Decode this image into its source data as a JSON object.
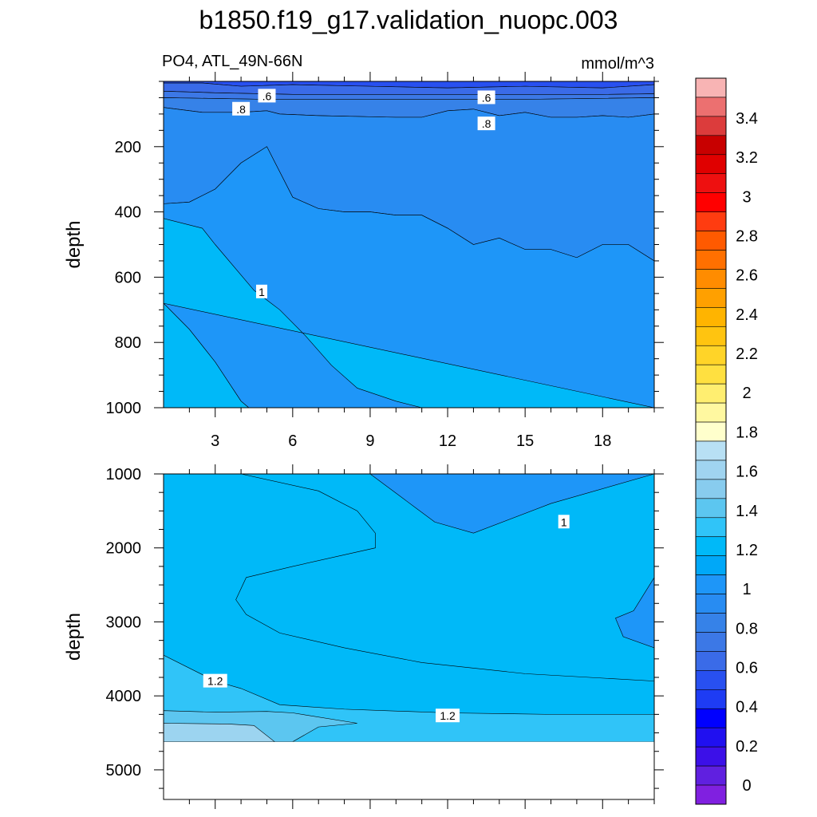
{
  "figure": {
    "title": "b1850.f19_g17.validation_nuopc.003",
    "left_string": "PO4, ATL_49N-66N",
    "right_string": "mmol/m^3"
  },
  "chart_data": [
    {
      "type": "heatmap",
      "plot_kind": "filled contour",
      "panel": "upper",
      "xlim": [
        1,
        20
      ],
      "ylim": [
        1000,
        0
      ],
      "y_reversed": true,
      "x_ticks": [
        3,
        6,
        9,
        12,
        15,
        18
      ],
      "x_tick_labels": [
        "3",
        "6",
        "9",
        "12",
        "15",
        "18"
      ],
      "y_ticks": [
        200,
        400,
        600,
        800,
        1000
      ],
      "y_tick_labels": [
        "200",
        "400",
        "600",
        "800",
        "1000"
      ],
      "ylabel": "depth",
      "xlabel": "",
      "contour_labels": [
        {
          "text": ".6",
          "x": 5.0,
          "y": 45
        },
        {
          "text": ".6",
          "x": 13.5,
          "y": 50
        },
        {
          "text": ".8",
          "x": 4.0,
          "y": 85
        },
        {
          "text": ".8",
          "x": 13.5,
          "y": 130
        },
        {
          "text": "1",
          "x": 4.8,
          "y": 645
        }
      ],
      "bands": [
        {
          "range": "0.4-0.5",
          "color": "#2850F0",
          "top": [
            [
              1,
              0
            ],
            [
              20,
              0
            ]
          ],
          "bottom": [
            [
              1,
              5
            ],
            [
              2.5,
              5
            ],
            [
              4,
              15
            ],
            [
              6,
              10
            ],
            [
              9,
              15
            ],
            [
              12,
              20
            ],
            [
              15,
              15
            ],
            [
              18,
              20
            ],
            [
              20,
              10
            ]
          ]
        },
        {
          "range": "0.5-0.6",
          "color": "#3A6BE8",
          "top": [
            [
              1,
              5
            ],
            [
              2.5,
              5
            ],
            [
              4,
              15
            ],
            [
              6,
              10
            ],
            [
              9,
              15
            ],
            [
              12,
              20
            ],
            [
              15,
              15
            ],
            [
              18,
              20
            ],
            [
              20,
              10
            ]
          ],
          "bottom": [
            [
              1,
              30
            ],
            [
              3,
              35
            ],
            [
              6,
              40
            ],
            [
              10,
              40
            ],
            [
              14,
              40
            ],
            [
              18,
              40
            ],
            [
              20,
              38
            ]
          ]
        },
        {
          "range": "0.6-0.7",
          "color": "#3C78E6",
          "top": [
            [
              1,
              30
            ],
            [
              3,
              35
            ],
            [
              6,
              40
            ],
            [
              10,
              40
            ],
            [
              14,
              40
            ],
            [
              18,
              40
            ],
            [
              20,
              38
            ]
          ],
          "bottom": [
            [
              1,
              50
            ],
            [
              5,
              55
            ],
            [
              10,
              55
            ],
            [
              15,
              55
            ],
            [
              20,
              50
            ]
          ]
        },
        {
          "range": "0.7-0.8",
          "color": "#3682E8",
          "top": [
            [
              1,
              50
            ],
            [
              5,
              55
            ],
            [
              10,
              55
            ],
            [
              15,
              55
            ],
            [
              20,
              50
            ]
          ],
          "bottom": [
            [
              1,
              80
            ],
            [
              2.5,
              95
            ],
            [
              4,
              95
            ],
            [
              5,
              90
            ],
            [
              5.5,
              100
            ],
            [
              7,
              105
            ],
            [
              10,
              110
            ],
            [
              11,
              110
            ],
            [
              12,
              90
            ],
            [
              13,
              85
            ],
            [
              14,
              105
            ],
            [
              15,
              95
            ],
            [
              16,
              110
            ],
            [
              17,
              110
            ],
            [
              18,
              105
            ],
            [
              19,
              110
            ],
            [
              20,
              100
            ]
          ]
        },
        {
          "range": "0.8-0.9",
          "color": "#288CF2",
          "top": [
            [
              1,
              80
            ],
            [
              2.5,
              95
            ],
            [
              4,
              95
            ],
            [
              5,
              90
            ],
            [
              5.5,
              100
            ],
            [
              7,
              105
            ],
            [
              10,
              110
            ],
            [
              11,
              110
            ],
            [
              12,
              90
            ],
            [
              13,
              85
            ],
            [
              14,
              105
            ],
            [
              15,
              95
            ],
            [
              16,
              110
            ],
            [
              17,
              110
            ],
            [
              18,
              105
            ],
            [
              19,
              110
            ],
            [
              20,
              100
            ]
          ],
          "bottom": [
            [
              1,
              375
            ],
            [
              2,
              370
            ],
            [
              3,
              330
            ],
            [
              4,
              250
            ],
            [
              5,
              200
            ],
            [
              6,
              355
            ],
            [
              7,
              390
            ],
            [
              8,
              400
            ],
            [
              9,
              400
            ],
            [
              10,
              410
            ],
            [
              11,
              410
            ],
            [
              12,
              450
            ],
            [
              13,
              500
            ],
            [
              14,
              480
            ],
            [
              15,
              515
            ],
            [
              16,
              515
            ],
            [
              17,
              540
            ],
            [
              18,
              500
            ],
            [
              19,
              500
            ],
            [
              20,
              550
            ]
          ]
        },
        {
          "range": "0.9-1.0",
          "color": "#1E96F8",
          "top": [
            [
              1,
              375
            ],
            [
              2,
              370
            ],
            [
              3,
              330
            ],
            [
              4,
              250
            ],
            [
              5,
              200
            ],
            [
              6,
              355
            ],
            [
              7,
              390
            ],
            [
              8,
              400
            ],
            [
              9,
              400
            ],
            [
              10,
              410
            ],
            [
              11,
              410
            ],
            [
              12,
              450
            ],
            [
              13,
              500
            ],
            [
              14,
              480
            ],
            [
              15,
              515
            ],
            [
              16,
              515
            ],
            [
              17,
              540
            ],
            [
              18,
              500
            ],
            [
              19,
              500
            ],
            [
              20,
              550
            ]
          ],
          "bottom": [
            [
              1,
              680
            ],
            [
              2,
              760
            ],
            [
              3,
              860
            ],
            [
              4,
              980
            ],
            [
              4.3,
              1000
            ],
            [
              11,
              1000
            ],
            [
              10,
              980
            ],
            [
              8.5,
              940
            ],
            [
              7.5,
              870
            ],
            [
              6.5,
              780
            ],
            [
              5.5,
              700
            ],
            [
              4.5,
              640
            ],
            [
              3,
              500
            ],
            [
              2.5,
              450
            ],
            [
              1,
              420
            ]
          ]
        },
        {
          "range": "1.0-1.1",
          "color": "#00B9F8",
          "top": [
            [
              1,
              680
            ],
            [
              2,
              760
            ],
            [
              3,
              860
            ],
            [
              4,
              980
            ],
            [
              4.3,
              1000
            ]
          ],
          "bottom": [
            [
              1,
              1000
            ]
          ]
        }
      ]
    },
    {
      "type": "heatmap",
      "plot_kind": "filled contour",
      "panel": "lower",
      "xlim": [
        1,
        20
      ],
      "ylim": [
        5400,
        1000
      ],
      "y_reversed": true,
      "x_ticks": [
        3,
        6,
        9,
        12,
        15,
        18
      ],
      "y_ticks": [
        1000,
        2000,
        3000,
        4000,
        5000
      ],
      "y_tick_labels": [
        "1000",
        "2000",
        "3000",
        "4000",
        "5000"
      ],
      "ylabel": "depth",
      "xlabel": "",
      "missing_below": 4620,
      "contour_labels": [
        {
          "text": "1",
          "x": 16.5,
          "y": 1650
        },
        {
          "text": "1.2",
          "x": 3.0,
          "y": 3800
        },
        {
          "text": "1.2",
          "x": 12.0,
          "y": 4270
        }
      ],
      "bands": [
        {
          "range": "0.9-1.0",
          "color": "#1E96F8",
          "polygon": [
            [
              11,
              1000
            ],
            [
              20,
              1000
            ],
            [
              20,
              2400
            ],
            [
              19.3,
              2800
            ],
            [
              19,
              2900
            ],
            [
              18.7,
              2900
            ],
            [
              18.5,
              2850
            ],
            [
              18,
              2850
            ],
            [
              18.5,
              3100
            ],
            [
              19,
              3200
            ],
            [
              20,
              3350
            ],
            [
              20,
              3400
            ],
            [
              20,
              2400
            ]
          ]
        },
        {
          "range": "1.0-1.1 (right lobe)",
          "color": "#1E96F8",
          "polygon": [
            [
              11,
              1000
            ],
            [
              20,
              1000
            ],
            [
              20,
              2400
            ],
            [
              19.5,
              2700
            ],
            [
              17,
              2700
            ],
            [
              15,
              2400
            ],
            [
              13,
              2000
            ],
            [
              11.5,
              1600
            ],
            [
              9,
              1000
            ]
          ]
        },
        {
          "range": "1.1-1.2",
          "color": "#00B9F8"
        },
        {
          "range": "1.2-1.3",
          "color": "#30C4F8",
          "polygon": [
            [
              1,
              3450
            ],
            [
              3,
              3800
            ],
            [
              5,
              4100
            ],
            [
              6,
              4160
            ],
            [
              9,
              4210
            ],
            [
              12,
              4250
            ],
            [
              16,
              4250
            ],
            [
              20,
              4250
            ]
          ]
        },
        {
          "range": "1.3-1.4",
          "color": "#5CC6F0",
          "polygon": [
            [
              1,
              4200
            ],
            [
              5,
              4230
            ],
            [
              8,
              4350
            ],
            [
              6,
              4620
            ],
            [
              1,
              4620
            ]
          ]
        },
        {
          "range": "1.4-1.5",
          "color": "#9CD4F0",
          "polygon": [
            [
              1,
              4370
            ],
            [
              4,
              4400
            ],
            [
              5,
              4620
            ],
            [
              1,
              4620
            ]
          ]
        }
      ]
    }
  ],
  "colorbar": {
    "orientation": "vertical",
    "labels": [
      "3.4",
      "3.2",
      "3",
      "2.8",
      "2.6",
      "2.4",
      "2.2",
      "2",
      "1.8",
      "1.6",
      "1.4",
      "1.2",
      "1",
      "0.8",
      "0.6",
      "0.4",
      "0.2",
      "0"
    ],
    "colors_top_to_bottom": [
      "#F8B4B4",
      "#EC7070",
      "#DC3C3C",
      "#C80000",
      "#E00000",
      "#EE1010",
      "#FF0000",
      "#FF3C10",
      "#FF5A00",
      "#FF7000",
      "#FF8C00",
      "#FFA000",
      "#FFB400",
      "#FFC410",
      "#FFD428",
      "#FFE040",
      "#FFEE70",
      "#FFF8A0",
      "#FFFFCC",
      "#B8E0F4",
      "#A0D4F0",
      "#88CCEE",
      "#5CC6F0",
      "#30C4F8",
      "#00B9F8",
      "#00A8F8",
      "#1E96F8",
      "#288CF2",
      "#3682E8",
      "#3C78E6",
      "#3A6BE8",
      "#2850F0",
      "#1E3CF4",
      "#0000FF",
      "#2010F0",
      "#3C10E8",
      "#6020E0",
      "#8020E0"
    ]
  }
}
